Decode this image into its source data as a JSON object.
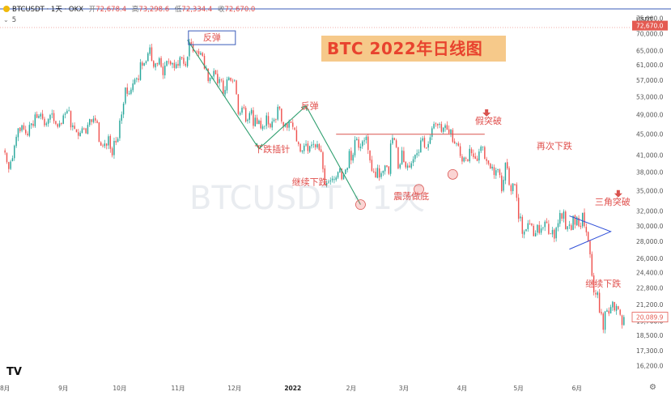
{
  "header": {
    "symbol": "BTCUSDT · 1天 · OKX",
    "open_label": "开",
    "open": "72,678.4",
    "high_label": "高",
    "high": "73,298.6",
    "low_label": "低",
    "low": "72,334.4",
    "close_label": "收",
    "close": "72,670.0"
  },
  "indicator": {
    "value": "5"
  },
  "banner": {
    "text": "BTC 2022年日线图"
  },
  "watermark": "BTCUSDT · 1天",
  "logo_text": "TV",
  "colors": {
    "up": "#26a69a",
    "down": "#ef5350",
    "pattern": "#2e9e6e",
    "resistance": "#d9534f",
    "triangle": "#2f4fd8",
    "annotation": "#e0504d",
    "price_tag": "#e45b52",
    "banner_bg": "#f6c98a"
  },
  "chart_data": {
    "type": "candlestick",
    "title": "BTC 2022年日线图",
    "currency_label": "USDT",
    "y_scale": "log",
    "ylim": [
      15400,
      78500
    ],
    "y_ticks": [
      "75,000.0",
      "70,000.0",
      "65,000.0",
      "61,000.0",
      "57,000.0",
      "53,000.0",
      "49,000.0",
      "45,000.0",
      "41,000.0",
      "38,000.0",
      "35,000.0",
      "32,000.0",
      "30,000.0",
      "28,000.0",
      "26,000.0",
      "24,400.0",
      "22,800.0",
      "21,200.0",
      "19,700.0",
      "18,500.0",
      "17,300.0",
      "16,200.0"
    ],
    "x_ticks": [
      "8月",
      "9月",
      "10月",
      "11月",
      "12月",
      "2022",
      "2月",
      "3月",
      "4月",
      "5月",
      "6月"
    ],
    "x_tick_index": [
      0,
      31,
      61,
      92,
      122,
      153,
      184,
      212,
      243,
      273,
      304
    ],
    "current_price_tag": "72,670.0",
    "last_price_tag": "20,089.9",
    "close_series": [
      41500,
      39800,
      38600,
      39900,
      40500,
      42800,
      44500,
      46200,
      45600,
      46800,
      46000,
      45200,
      44800,
      46900,
      47200,
      46700,
      49100,
      48400,
      48800,
      49200,
      48200,
      46800,
      47200,
      48100,
      49000,
      49300,
      47700,
      47100,
      46500,
      47200,
      47100,
      48900,
      49300,
      49900,
      50000,
      46400,
      46800,
      46100,
      45400,
      44700,
      45300,
      46200,
      46100,
      45200,
      46900,
      48100,
      47500,
      48200,
      47800,
      47300,
      43500,
      42800,
      42700,
      43200,
      42800,
      44600,
      42200,
      41000,
      43700,
      43400,
      44100,
      47800,
      49100,
      51500,
      55300,
      53800,
      53900,
      54800,
      56300,
      57300,
      57600,
      57200,
      61800,
      60900,
      61600,
      62100,
      64300,
      66000,
      62200,
      60600,
      61500,
      61300,
      62900,
      60600,
      58400,
      60900,
      62200,
      61900,
      61300,
      61600,
      60300,
      61300,
      60900,
      63200,
      62900,
      61400,
      60900,
      63300,
      67600,
      66900,
      64900,
      64900,
      64800,
      64100,
      64400,
      63600,
      60100,
      60300,
      56900,
      57800,
      58100,
      59500,
      58600,
      56300,
      57400,
      57200,
      53700,
      54700,
      57300,
      57800,
      57000,
      56900,
      57200,
      53700,
      49200,
      49400,
      50600,
      50500,
      47600,
      48000,
      49400,
      50100,
      46700,
      48400,
      47100,
      47800,
      46200,
      46600,
      46700,
      48900,
      47000,
      46400,
      47600,
      48000,
      48000,
      50800,
      50400,
      47600,
      46500,
      47100,
      46300,
      47700,
      47300,
      46500,
      45900,
      43600,
      43100,
      41700,
      41900,
      42800,
      43100,
      41800,
      42700,
      43000,
      43100,
      42500,
      43100,
      42000,
      41600,
      38600,
      36000,
      36300,
      36500,
      36700,
      37000,
      36900,
      37200,
      38100,
      38700,
      36900,
      37700,
      38500,
      38800,
      41800,
      40100,
      41100,
      43900,
      44100,
      42400,
      42600,
      43600,
      43800,
      44500,
      42000,
      40100,
      38300,
      38100,
      37200,
      38800,
      37200,
      37900,
      38300,
      39200,
      39000,
      37800,
      43200,
      44300,
      43900,
      42500,
      38700,
      39400,
      41900,
      39800,
      38900,
      39200,
      38900,
      39600,
      40300,
      41100,
      41400,
      41600,
      43800,
      44200,
      42500,
      42400,
      43100,
      44400,
      46200,
      47100,
      47100,
      46800,
      47100,
      45500,
      46300,
      46800,
      45900,
      45200,
      46000,
      43500,
      43200,
      43200,
      42800,
      40900,
      39900,
      40600,
      40400,
      40000,
      42200,
      41400,
      40700,
      40400,
      40000,
      41700,
      42600,
      42600,
      40400,
      40000,
      39500,
      38700,
      39000,
      37600,
      38400,
      38600,
      37600,
      35000,
      36800,
      39700,
      38700,
      36000,
      35000,
      36200,
      36000,
      34000,
      31000,
      31300,
      29000,
      29300,
      29600,
      30400,
      30300,
      30100,
      28700,
      29100,
      30200,
      29100,
      29700,
      29800,
      30600,
      30400,
      29000,
      29000,
      29500,
      28400,
      29800,
      30400,
      31800,
      31000,
      32000,
      29600,
      30000,
      30200,
      29500,
      31400,
      30200,
      31200,
      30000,
      29900,
      31800,
      30000,
      29200,
      28100,
      26500,
      24100,
      22400,
      22200,
      22400,
      20500,
      20400,
      19000,
      20600,
      20700,
      20400,
      21000,
      21500,
      20700,
      21100,
      20800,
      20300,
      19400,
      20100
    ],
    "annotations": [
      {
        "text": "反弹",
        "value": 69000
      },
      {
        "text": "下跌插针",
        "value": 42200
      },
      {
        "text": "反弹",
        "value": 51000
      },
      {
        "text": "继续下跌",
        "value": 36500
      },
      {
        "text": "震荡做底",
        "value": 34300
      },
      {
        "text": "假突破",
        "value": 47800
      },
      {
        "text": "再次下跌",
        "value": 42800
      },
      {
        "text": "三角突破",
        "value": 33400
      },
      {
        "text": "继续下跌",
        "value": 23300
      }
    ],
    "resistance_level": 45000
  }
}
